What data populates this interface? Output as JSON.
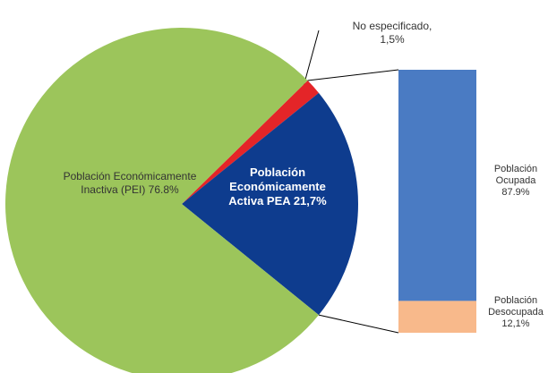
{
  "chart_data": [
    {
      "type": "pie",
      "categories": [
        "No especificado,",
        "Población Económicamente Activa PEA",
        "Población Económicamente Inactiva (PEI)"
      ],
      "values": [
        1.5,
        21.7,
        76.8
      ],
      "value_labels": [
        "1,5%",
        "21,7%",
        "76.8%"
      ],
      "colors": [
        "#e42528",
        "#0e3c8e",
        "#9cc55b"
      ]
    },
    {
      "type": "bar",
      "stacked": true,
      "categories": [
        "Población Ocupada",
        "Población Desocupada"
      ],
      "values": [
        87.9,
        12.1
      ],
      "value_labels": [
        "87.9%",
        "12,1%"
      ],
      "colors": [
        "#4a7bc3",
        "#f8b98b"
      ]
    }
  ]
}
